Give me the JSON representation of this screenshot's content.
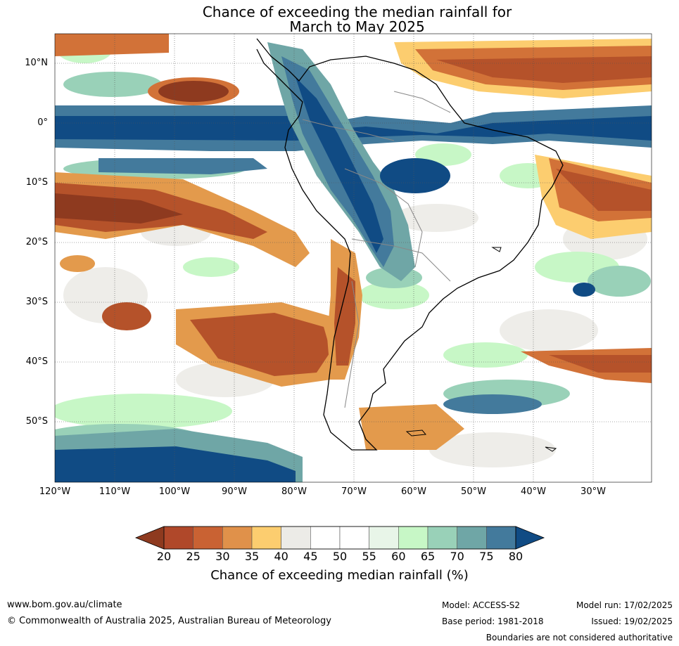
{
  "title_line1": "Chance of exceeding the median rainfall for",
  "title_line2": "March to May 2025",
  "map": {
    "lat_labels": [
      "10°N",
      "0°",
      "10°S",
      "20°S",
      "30°S",
      "40°S",
      "50°S"
    ],
    "lon_labels": [
      "120°W",
      "110°W",
      "100°W",
      "90°W",
      "80°W",
      "70°W",
      "60°W",
      "50°W",
      "40°W",
      "30°W"
    ],
    "colors": {
      "ocean_dry_strong": "#8e3a1f",
      "dry_25": "#b5522a",
      "dry_30": "#d27238",
      "dry_35": "#e39a4c",
      "dry_40": "#fccd6f",
      "neutral_45": "#ecebe7",
      "neutral_55": "#ffffff",
      "wet_60": "#e8f5e8",
      "wet_65": "#c7f7c6",
      "wet_70": "#99d1b8",
      "wet_75": "#6fa6a6",
      "wet_80": "#437a9c",
      "wet_max": "#104b84",
      "coast": "#000000",
      "borders": "#888888"
    }
  },
  "colorbar": {
    "ticks": [
      "20",
      "25",
      "30",
      "35",
      "40",
      "45",
      "50",
      "55",
      "60",
      "65",
      "70",
      "75",
      "80"
    ],
    "label": "Chance of exceeding median rainfall (%)",
    "colors": [
      "#8e3a1f",
      "#b0482a",
      "#c96233",
      "#e0914a",
      "#fccd6f",
      "#ecebe7",
      "#ffffff",
      "#ffffff",
      "#e8f5e8",
      "#c7f7c6",
      "#99d1b8",
      "#6fa6a6",
      "#437a9c",
      "#104b84"
    ]
  },
  "footer": {
    "website": "www.bom.gov.au/climate",
    "copyright": "© Commonwealth of Australia 2025, Australian Bureau of Meteorology",
    "model": "Model: ACCESS-S2",
    "base_period": "Base period: 1981-2018",
    "model_run": "Model run: 17/02/2025",
    "issued": "Issued: 19/02/2025",
    "disclaimer": "Boundaries are not considered authoritative"
  }
}
